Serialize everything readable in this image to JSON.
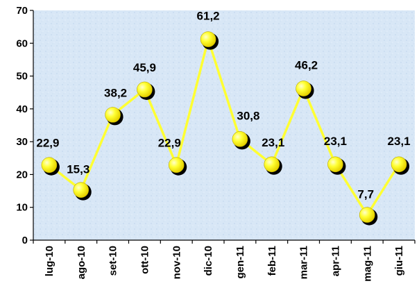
{
  "chart_data": {
    "type": "line",
    "categories": [
      "lug-10",
      "ago-10",
      "set-10",
      "ott-10",
      "nov-10",
      "dic-10",
      "gen-11",
      "feb-11",
      "mar-11",
      "apr-11",
      "mag-11",
      "giu-11"
    ],
    "values": [
      22.9,
      15.3,
      38.2,
      45.9,
      22.9,
      61.2,
      30.8,
      23.1,
      46.2,
      23.1,
      7.7,
      23.1
    ],
    "value_labels": [
      "22,9",
      "15,3",
      "38,2",
      "45,9",
      "22,9",
      "61,2",
      "30,8",
      "23,1",
      "46,2",
      "23,1",
      "7,7",
      "23,1"
    ],
    "yticks": [
      0,
      10,
      20,
      30,
      40,
      50,
      60,
      70
    ],
    "ylim": [
      0,
      70
    ],
    "title": "",
    "xlabel": "",
    "ylabel": "",
    "grid": false,
    "legend": "none",
    "colors": {
      "line": "#ffff33",
      "marker": "#ffff33",
      "marker_shadow": "#000000",
      "plot_bg": "#d6e6f6",
      "axis": "#000000"
    }
  }
}
